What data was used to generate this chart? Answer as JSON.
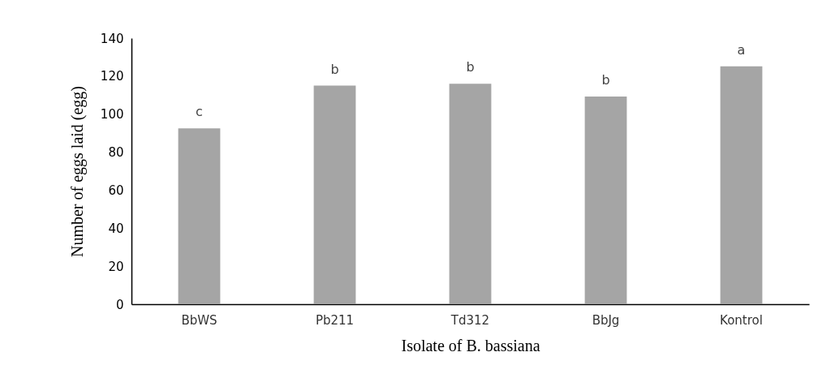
{
  "chart_data": {
    "type": "bar",
    "xlabel": "Isolate of B. bassiana",
    "ylabel": "Number of eggs laid (egg)",
    "categories": [
      "BbWS",
      "Pb211",
      "Td312",
      "BbJg",
      "Kontrol"
    ],
    "values": [
      92.5,
      115,
      116,
      109.3,
      125.2
    ],
    "color": "#a5a5a5",
    "value_labels": [
      "c",
      "b",
      "b",
      "b",
      "a"
    ],
    "ylim": [
      0,
      140
    ],
    "yticks": [
      0,
      20,
      40,
      60,
      80,
      100,
      120,
      140
    ],
    "grid": false
  }
}
